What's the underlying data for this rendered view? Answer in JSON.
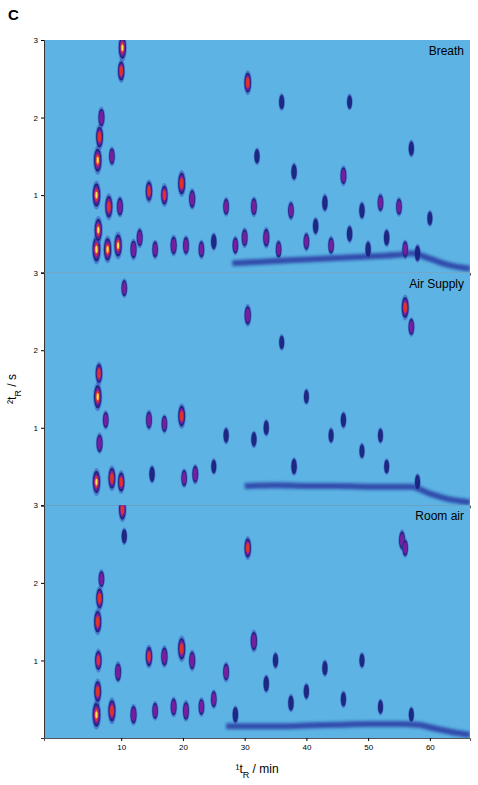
{
  "panel_label": "C",
  "y_label": "²tR / s",
  "chart_data": [
    {
      "type": "heatmap",
      "title": "Breath",
      "xlim": [
        -2.5,
        66.5
      ],
      "ylim": [
        0,
        3
      ],
      "yticks": [
        1,
        2,
        3
      ],
      "zlim": [
        0,
        1
      ],
      "x": [
        6.0,
        6.3,
        6.0,
        6.2,
        6.5,
        6.8,
        7.8,
        8.0,
        8.5,
        9.5,
        9.8,
        10.0,
        10.2,
        12.0,
        13.0,
        14.5,
        15.5,
        17.0,
        18.5,
        19.8,
        20.5,
        21.5,
        23,
        25,
        27,
        28.5,
        30,
        30.5,
        31.5,
        32,
        33.5,
        35.5,
        36,
        37.5,
        38,
        40,
        41.5,
        43,
        44,
        46,
        47,
        49,
        50,
        52,
        53,
        55,
        56,
        57,
        58,
        60,
        47
      ],
      "y": [
        0.3,
        0.55,
        1.0,
        1.45,
        1.75,
        2.0,
        0.3,
        0.85,
        1.5,
        0.35,
        0.85,
        2.6,
        2.9,
        0.3,
        0.45,
        1.05,
        0.3,
        1.0,
        0.35,
        1.15,
        0.35,
        0.95,
        0.3,
        0.4,
        0.85,
        0.35,
        0.45,
        2.45,
        0.85,
        1.5,
        0.45,
        0.3,
        2.2,
        0.8,
        1.3,
        0.4,
        0.6,
        0.9,
        0.35,
        1.25,
        0.5,
        0.8,
        0.3,
        0.9,
        0.45,
        0.85,
        0.3,
        1.6,
        0.25,
        0.7,
        2.2
      ],
      "values": [
        1.0,
        0.9,
        0.95,
        0.95,
        0.8,
        0.6,
        0.9,
        0.85,
        0.5,
        0.9,
        0.6,
        0.7,
        0.9,
        0.6,
        0.55,
        0.7,
        0.5,
        0.7,
        0.6,
        0.85,
        0.55,
        0.6,
        0.5,
        0.45,
        0.5,
        0.5,
        0.55,
        0.75,
        0.55,
        0.4,
        0.6,
        0.5,
        0.4,
        0.5,
        0.45,
        0.5,
        0.45,
        0.45,
        0.5,
        0.55,
        0.45,
        0.45,
        0.45,
        0.5,
        0.45,
        0.5,
        0.5,
        0.4,
        0.45,
        0.35,
        0.35
      ],
      "bleed": {
        "x": [
          28,
          35,
          40,
          45,
          50,
          55,
          57,
          60,
          63,
          66.5
        ],
        "y": [
          0.12,
          0.15,
          0.17,
          0.19,
          0.21,
          0.23,
          0.25,
          0.18,
          0.1,
          0.05
        ]
      }
    },
    {
      "type": "heatmap",
      "title": "Air Supply",
      "xlim": [
        -2.5,
        66.5
      ],
      "ylim": [
        0,
        3
      ],
      "yticks": [
        1,
        2,
        3
      ],
      "zlim": [
        0,
        1
      ],
      "x": [
        6.0,
        6.2,
        6.4,
        6.5,
        7.5,
        8.5,
        10.0,
        10.5,
        14.5,
        15,
        17,
        19.8,
        20.2,
        22,
        25,
        27,
        30.5,
        31.5,
        33.5,
        36,
        38,
        40,
        44,
        46,
        49,
        52,
        56,
        57,
        53,
        58
      ],
      "y": [
        0.3,
        1.4,
        1.7,
        0.8,
        1.1,
        0.35,
        0.3,
        2.8,
        1.1,
        0.4,
        1.05,
        1.15,
        0.35,
        0.4,
        0.5,
        0.9,
        2.45,
        0.85,
        1.0,
        2.1,
        0.5,
        1.4,
        0.9,
        1.1,
        0.7,
        0.9,
        2.55,
        2.3,
        0.5,
        0.3
      ],
      "values": [
        0.9,
        0.95,
        0.7,
        0.6,
        0.5,
        0.8,
        0.7,
        0.5,
        0.55,
        0.45,
        0.5,
        0.8,
        0.5,
        0.55,
        0.35,
        0.4,
        0.65,
        0.4,
        0.4,
        0.35,
        0.45,
        0.35,
        0.35,
        0.4,
        0.35,
        0.35,
        0.8,
        0.5,
        0.35,
        0.4
      ],
      "bleed": {
        "x": [
          30,
          35,
          40,
          45,
          50,
          55,
          57,
          60,
          63,
          66.5
        ],
        "y": [
          0.25,
          0.26,
          0.25,
          0.25,
          0.24,
          0.24,
          0.24,
          0.15,
          0.08,
          0.04
        ]
      }
    },
    {
      "type": "heatmap",
      "title": "Room air",
      "x_label": "¹tR / min",
      "xlim": [
        -2.5,
        66.5
      ],
      "xticks": [
        10,
        20,
        30,
        40,
        50,
        60
      ],
      "ylim": [
        0,
        3
      ],
      "yticks": [
        1,
        2,
        3
      ],
      "zlim": [
        0,
        1
      ],
      "x": [
        6.0,
        6.2,
        6.3,
        6.2,
        6.5,
        6.8,
        8.5,
        9.5,
        10.2,
        10.5,
        12,
        14.5,
        15.5,
        17,
        18.5,
        19.8,
        20.5,
        21.5,
        23,
        25,
        27,
        28.5,
        30.5,
        31.5,
        33.5,
        35,
        37.5,
        40,
        43,
        46,
        49,
        52,
        55.5,
        56,
        57
      ],
      "y": [
        0.3,
        0.6,
        1.0,
        1.5,
        1.8,
        2.05,
        0.35,
        0.85,
        2.95,
        2.6,
        0.3,
        1.05,
        0.35,
        1.05,
        0.4,
        1.15,
        0.35,
        1.0,
        0.4,
        0.5,
        0.85,
        0.3,
        2.45,
        1.25,
        0.7,
        1.0,
        0.45,
        0.6,
        0.9,
        0.5,
        1.0,
        0.4,
        2.55,
        2.45,
        0.3
      ],
      "values": [
        1.0,
        0.8,
        0.7,
        0.85,
        0.75,
        0.5,
        0.85,
        0.6,
        0.8,
        0.4,
        0.6,
        0.7,
        0.5,
        0.65,
        0.55,
        0.85,
        0.6,
        0.6,
        0.5,
        0.5,
        0.55,
        0.45,
        0.7,
        0.65,
        0.45,
        0.4,
        0.45,
        0.4,
        0.4,
        0.4,
        0.35,
        0.35,
        0.6,
        0.5,
        0.35
      ],
      "bleed": {
        "x": [
          27,
          35,
          40,
          45,
          50,
          55,
          58,
          61,
          64,
          66.5
        ],
        "y": [
          0.15,
          0.15,
          0.16,
          0.17,
          0.18,
          0.18,
          0.17,
          0.12,
          0.07,
          0.04
        ]
      }
    }
  ]
}
